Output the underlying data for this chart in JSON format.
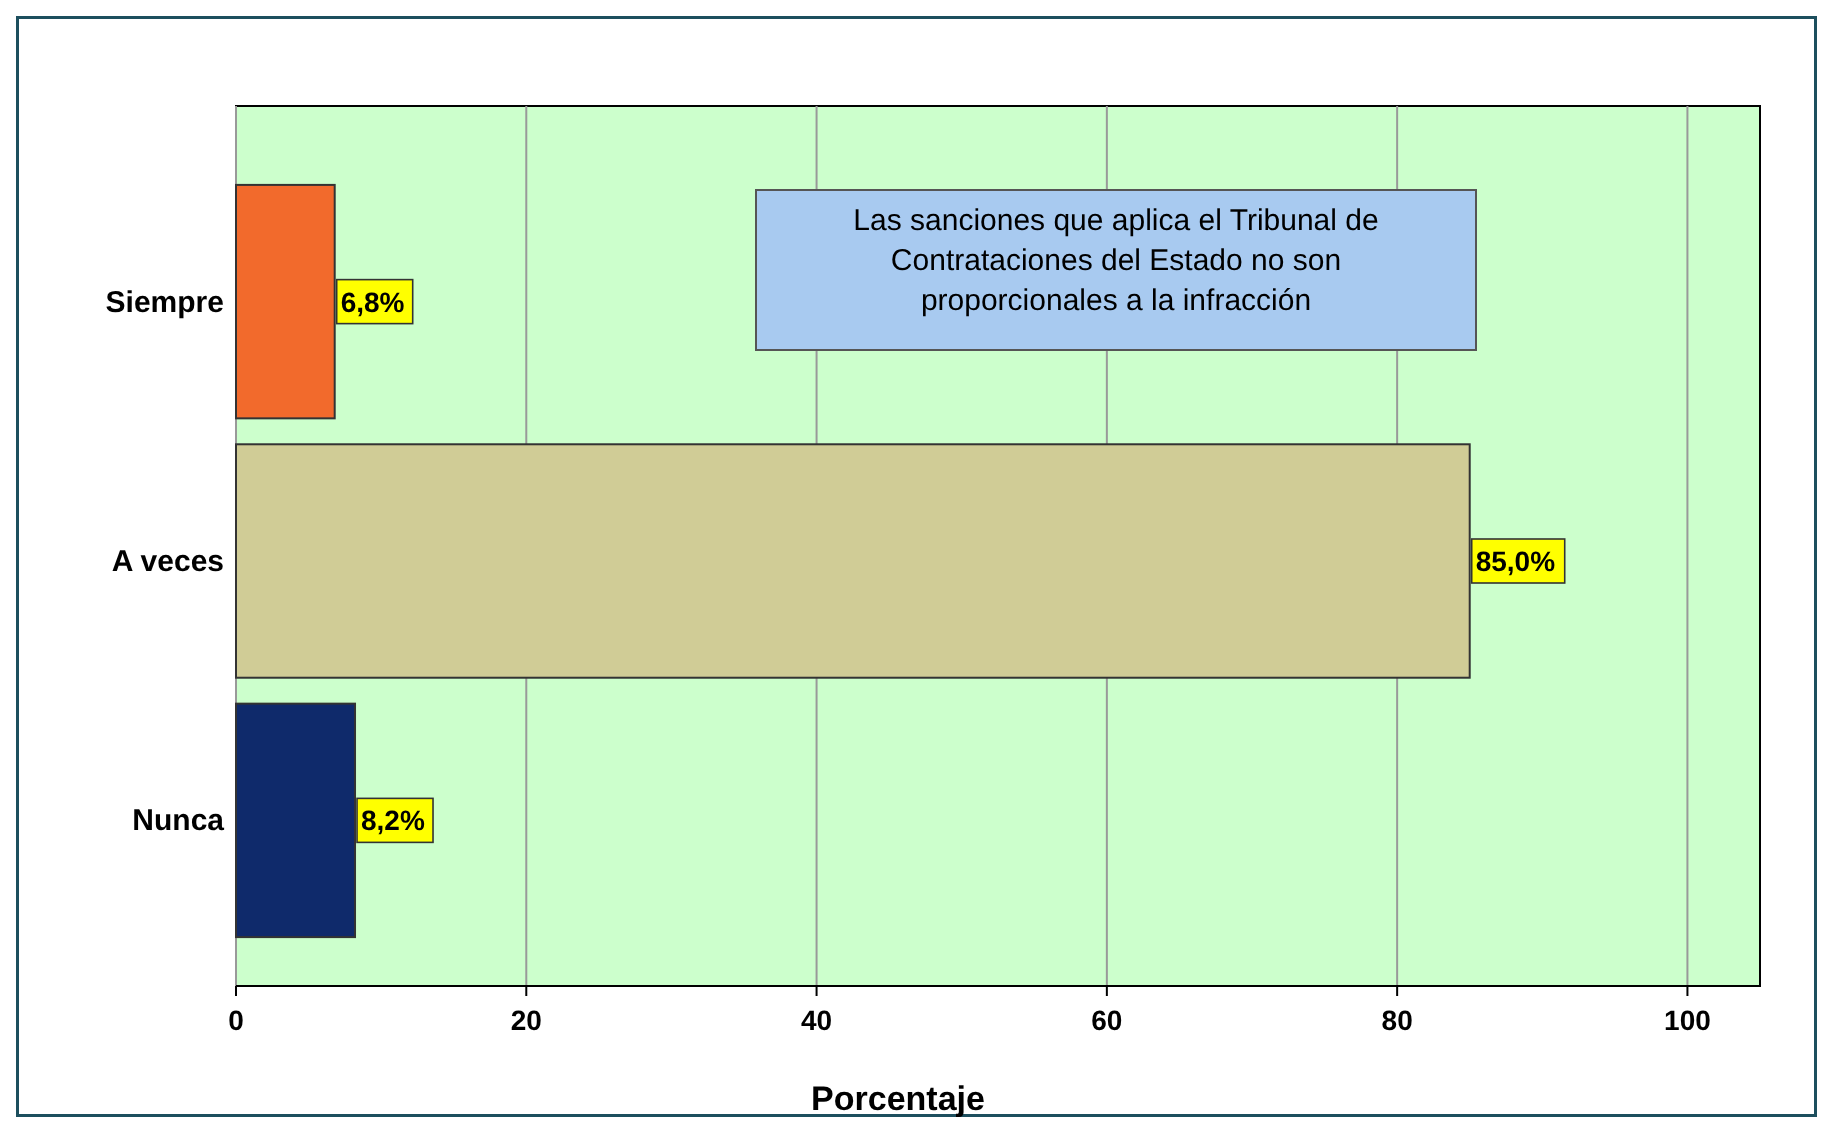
{
  "chart_data": {
    "type": "bar",
    "orientation": "horizontal",
    "title": "Las sanciones que aplica el Tribunal de Contrataciones del Estado no son proporcionales a la infracción",
    "xlabel": "Porcentaje",
    "categories": [
      "Siempre",
      "A veces",
      "Nunca"
    ],
    "values": [
      6.8,
      85.0,
      8.2
    ],
    "colors": [
      "#f26a2c",
      "#d0cc96",
      "#0f2a6b"
    ],
    "value_labels": [
      "6,8%",
      "85,0%",
      "8,2%"
    ],
    "xlim": [
      0,
      105
    ],
    "xticks": [
      0,
      20,
      40,
      60,
      80,
      100
    ],
    "grid": "x"
  }
}
